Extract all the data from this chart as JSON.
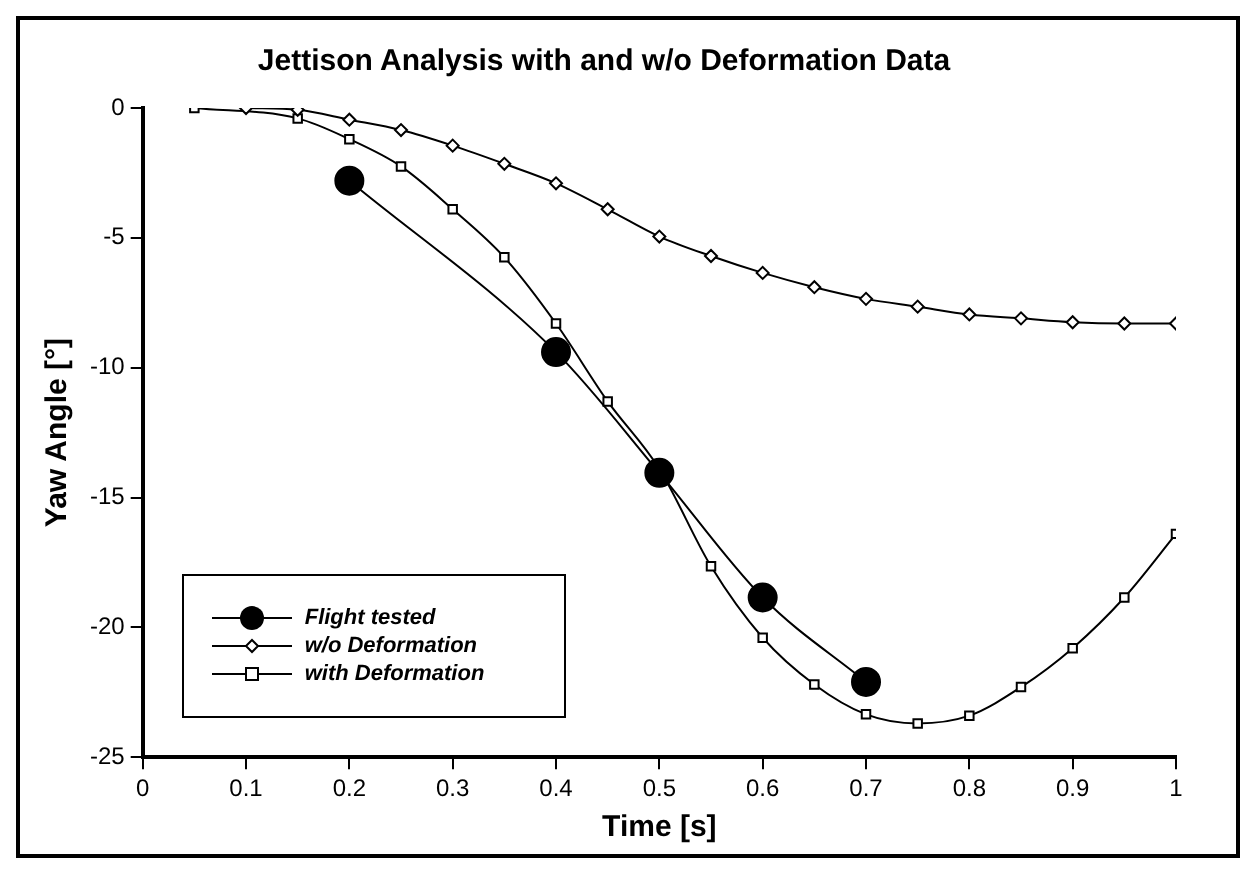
{
  "chart_data": {
    "type": "line",
    "title": "Jettison Analysis with and w/o Deformation Data",
    "xlabel": "Time [s]",
    "ylabel": "Yaw Angle [°]",
    "xlim": [
      0,
      1
    ],
    "xticks": [
      0,
      0.1,
      0.2,
      0.3,
      0.4,
      0.5,
      0.6,
      0.7,
      0.8,
      0.9,
      1
    ],
    "ylim": [
      -25,
      0
    ],
    "yticks": [
      -25,
      -20,
      -15,
      -10,
      -5,
      0
    ],
    "grid": false,
    "legend": "bottom left",
    "line_style": "solid",
    "series": [
      {
        "name": "Flight tested",
        "color": "#000000",
        "marker": "circle",
        "x": [
          0.2,
          0.4,
          0.5,
          0.6,
          0.7
        ],
        "values": [
          -2.8,
          -9.4,
          -14.05,
          -18.85,
          -22.1
        ]
      },
      {
        "name": "w/o Deformation",
        "color": "#000000",
        "marker": "diamond",
        "x": [
          0.1,
          0.15,
          0.2,
          0.25,
          0.3,
          0.35,
          0.4,
          0.45,
          0.5,
          0.55,
          0.6,
          0.65,
          0.7,
          0.75,
          0.8,
          0.85,
          0.9,
          0.95,
          1
        ],
        "values": [
          0,
          -0.07,
          -0.45,
          -0.85,
          -1.45,
          -2.15,
          -2.9,
          -3.9,
          -4.95,
          -5.7,
          -6.35,
          -6.9,
          -7.35,
          -7.65,
          -7.95,
          -8.1,
          -8.25,
          -8.3,
          -8.3
        ]
      },
      {
        "name": "with Deformation",
        "color": "#000000",
        "marker": "square",
        "x": [
          0.05,
          0.15,
          0.2,
          0.25,
          0.3,
          0.35,
          0.4,
          0.45,
          0.5,
          0.55,
          0.6,
          0.65,
          0.7,
          0.75,
          0.8,
          0.85,
          0.9,
          0.95,
          1
        ],
        "values": [
          0,
          -0.4,
          -1.2,
          -2.25,
          -3.9,
          -5.75,
          -8.3,
          -11.3,
          -13.9,
          -17.65,
          -20.4,
          -22.2,
          -23.35,
          -23.7,
          -23.4,
          -22.3,
          -20.8,
          -18.85,
          -16.4
        ]
      }
    ]
  }
}
